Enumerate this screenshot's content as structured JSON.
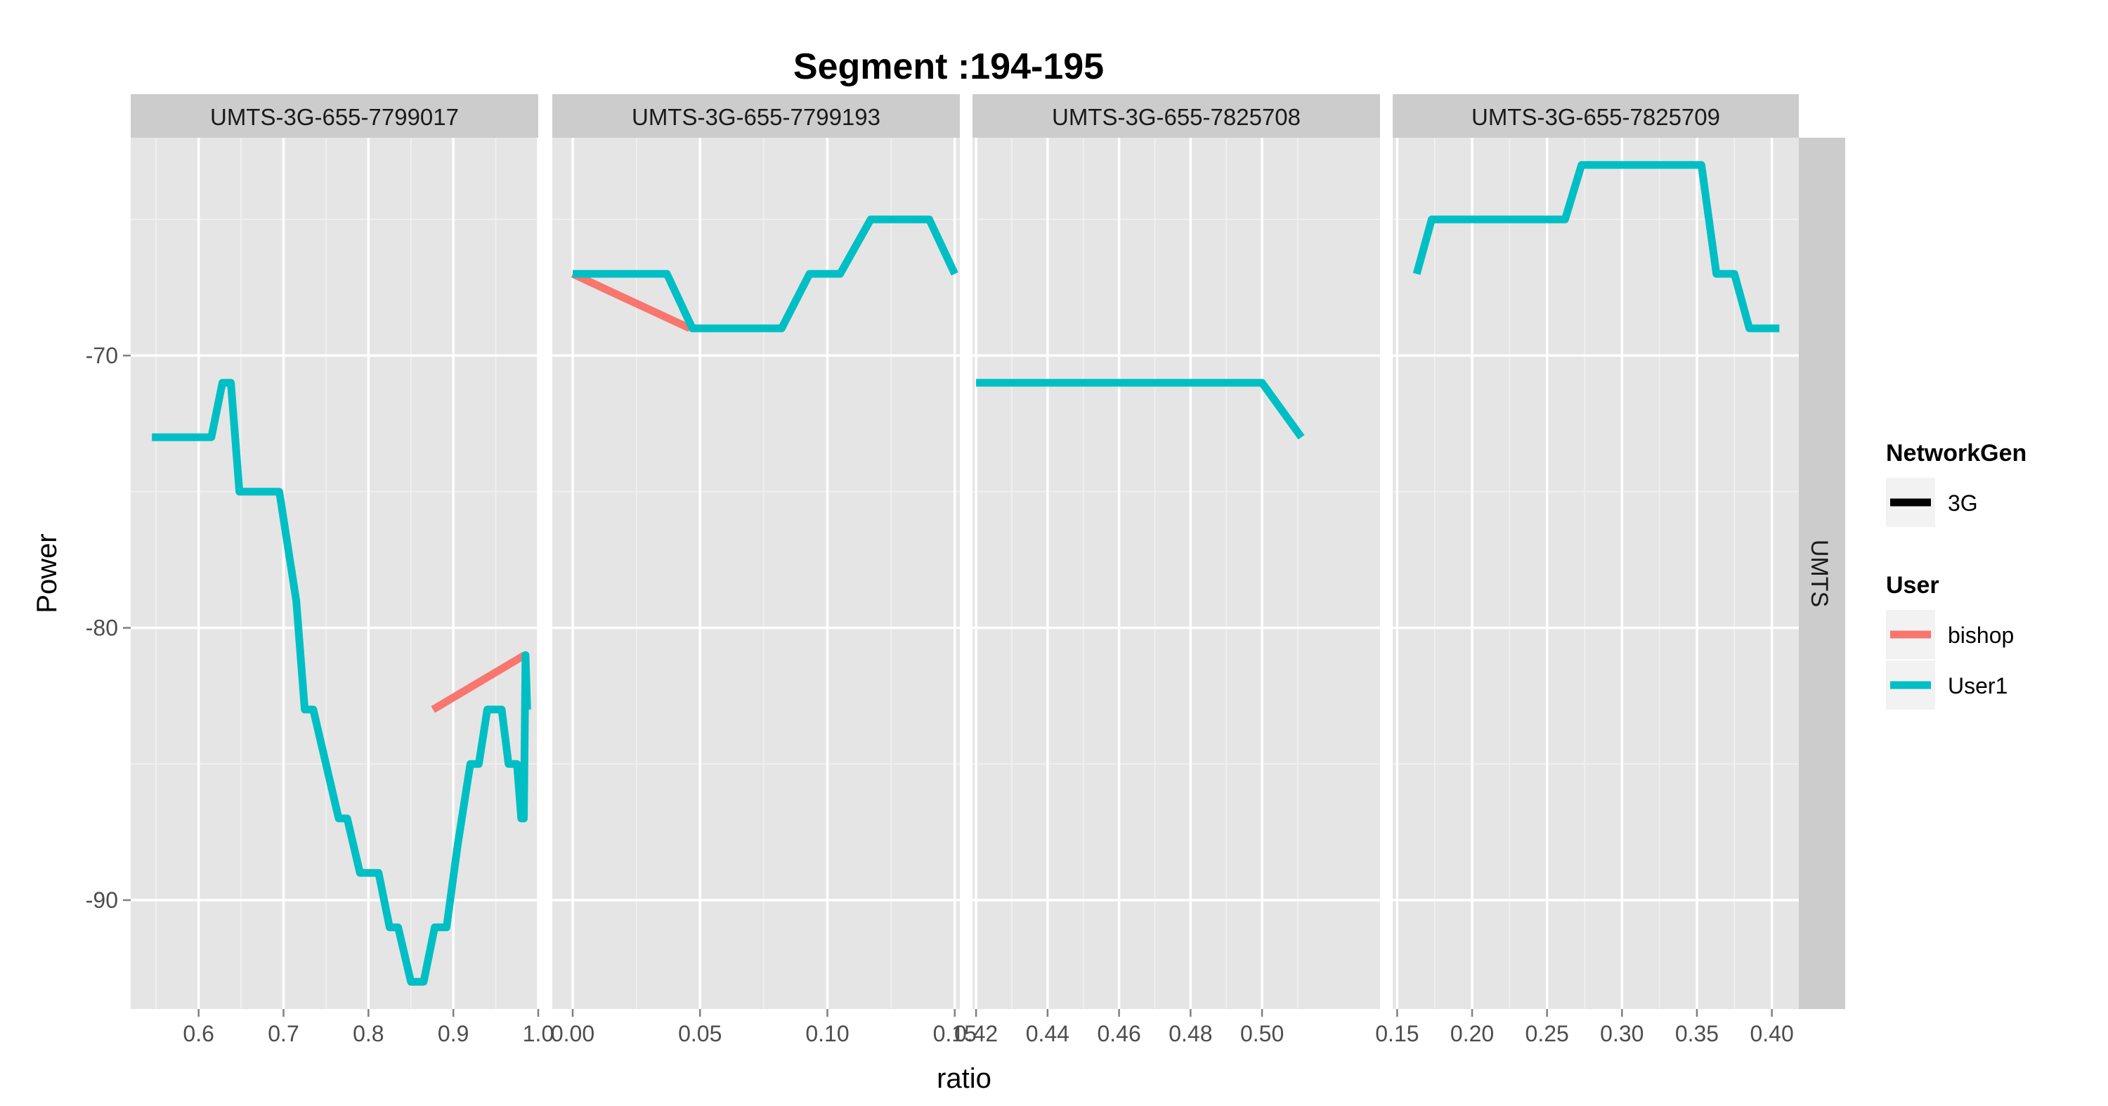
{
  "chart_data": {
    "type": "line",
    "title": "Segment :194-195",
    "xlabel": "ratio",
    "ylabel": "Power",
    "facet_row_label": "UMTS",
    "ylim": [
      -94,
      -62
    ],
    "y_ticks": [
      -70,
      -80,
      -90
    ],
    "y_tick_labels": [
      "-70",
      "-80",
      "-90"
    ],
    "grid": true,
    "legend_position": "right",
    "legends": [
      {
        "title": "NetworkGen",
        "items": [
          {
            "label": "3G",
            "color": "#000000"
          }
        ]
      },
      {
        "title": "User",
        "items": [
          {
            "label": "bishop",
            "color": "#F8766D"
          },
          {
            "label": "User1",
            "color": "#00BFC4"
          }
        ]
      }
    ],
    "panels": [
      {
        "strip": "UMTS-3G-655-7799017",
        "xlim": [
          0.52,
          1.0
        ],
        "x_ticks": [
          0.6,
          0.7,
          0.8,
          0.9,
          1.0
        ],
        "x_tick_labels": [
          "0.6",
          "0.7",
          "0.8",
          "0.9",
          "1.0"
        ],
        "series": [
          {
            "name": "bishop",
            "color": "#F8766D",
            "points": [
              [
                0.876,
                -83
              ],
              [
                0.984,
                -81
              ]
            ]
          },
          {
            "name": "User1",
            "color": "#00BFC4",
            "points": [
              [
                0.545,
                -73
              ],
              [
                0.615,
                -73
              ],
              [
                0.628,
                -71
              ],
              [
                0.638,
                -71
              ],
              [
                0.648,
                -75
              ],
              [
                0.695,
                -75
              ],
              [
                0.715,
                -79
              ],
              [
                0.725,
                -83
              ],
              [
                0.735,
                -83
              ],
              [
                0.765,
                -87
              ],
              [
                0.775,
                -87
              ],
              [
                0.79,
                -89
              ],
              [
                0.812,
                -89
              ],
              [
                0.825,
                -91
              ],
              [
                0.835,
                -91
              ],
              [
                0.85,
                -93
              ],
              [
                0.865,
                -93
              ],
              [
                0.878,
                -91
              ],
              [
                0.892,
                -91
              ],
              [
                0.905,
                -88
              ],
              [
                0.92,
                -85
              ],
              [
                0.93,
                -85
              ],
              [
                0.94,
                -83
              ],
              [
                0.957,
                -83
              ],
              [
                0.965,
                -85
              ],
              [
                0.975,
                -85
              ],
              [
                0.98,
                -87
              ],
              [
                0.983,
                -87
              ],
              [
                0.985,
                -81
              ],
              [
                0.987,
                -83
              ]
            ]
          }
        ]
      },
      {
        "strip": "UMTS-3G-655-7799193",
        "xlim": [
          -0.008,
          0.152
        ],
        "x_ticks": [
          0.0,
          0.05,
          0.1,
          0.15
        ],
        "x_tick_labels": [
          "0.00",
          "0.05",
          "0.10",
          "0.15"
        ],
        "series": [
          {
            "name": "bishop",
            "color": "#F8766D",
            "points": [
              [
                0.0,
                -67
              ],
              [
                0.046,
                -69
              ]
            ]
          },
          {
            "name": "User1",
            "color": "#00BFC4",
            "points": [
              [
                0.0,
                -67
              ],
              [
                0.037,
                -67
              ],
              [
                0.047,
                -69
              ],
              [
                0.082,
                -69
              ],
              [
                0.093,
                -67
              ],
              [
                0.105,
                -67
              ],
              [
                0.117,
                -65
              ],
              [
                0.14,
                -65
              ],
              [
                0.15,
                -67
              ]
            ]
          }
        ]
      },
      {
        "strip": "UMTS-3G-655-7825708",
        "xlim": [
          0.419,
          0.533
        ],
        "x_ticks": [
          0.42,
          0.44,
          0.46,
          0.48,
          0.5
        ],
        "x_tick_labels": [
          "0.42",
          "0.44",
          "0.46",
          "0.48",
          "0.50"
        ],
        "series": [
          {
            "name": "User1",
            "color": "#00BFC4",
            "points": [
              [
                0.42,
                -71
              ],
              [
                0.5,
                -71
              ],
              [
                0.511,
                -73
              ]
            ]
          }
        ]
      },
      {
        "strip": "UMTS-3G-655-7825709",
        "xlim": [
          0.147,
          0.418
        ],
        "x_ticks": [
          0.15,
          0.2,
          0.25,
          0.3,
          0.35,
          0.4
        ],
        "x_tick_labels": [
          "0.15",
          "0.20",
          "0.25",
          "0.30",
          "0.35",
          "0.40"
        ],
        "series": [
          {
            "name": "User1",
            "color": "#00BFC4",
            "points": [
              [
                0.163,
                -67
              ],
              [
                0.173,
                -65
              ],
              [
                0.262,
                -65
              ],
              [
                0.273,
                -63
              ],
              [
                0.353,
                -63
              ],
              [
                0.363,
                -67
              ],
              [
                0.375,
                -67
              ],
              [
                0.385,
                -69
              ],
              [
                0.405,
                -69
              ]
            ]
          }
        ]
      }
    ]
  }
}
